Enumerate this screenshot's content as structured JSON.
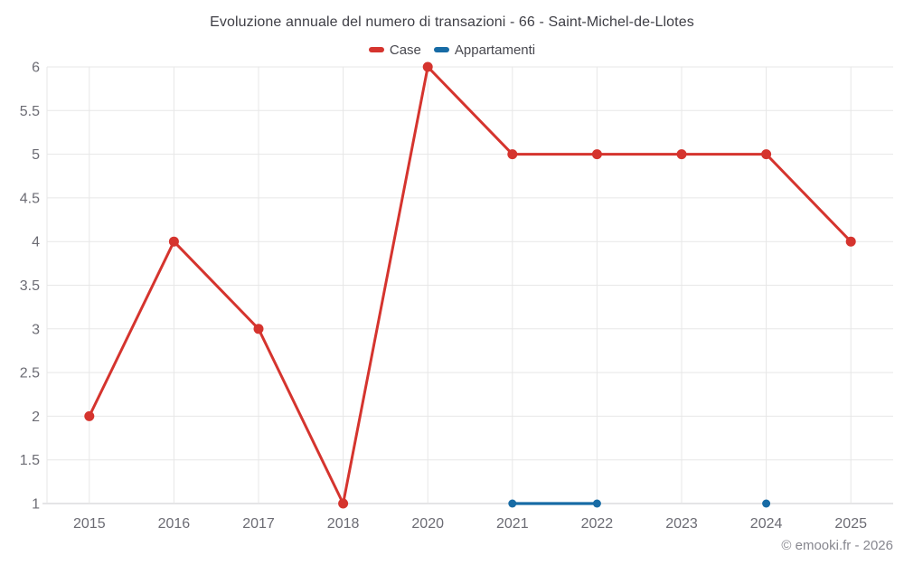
{
  "page": {
    "copyright": "© emooki.fr - 2026"
  },
  "chart_data": {
    "type": "line",
    "title": "Evoluzione annuale del numero di transazioni - 66 - Saint-Michel-de-Llotes",
    "categories": [
      "2015",
      "2016",
      "2017",
      "2018",
      "2020",
      "2021",
      "2022",
      "2023",
      "2024",
      "2025"
    ],
    "series": [
      {
        "name": "Case",
        "color": "#d5342e",
        "values": [
          2,
          4,
          3,
          1,
          6,
          5,
          5,
          5,
          5,
          4
        ]
      },
      {
        "name": "Appartamenti",
        "color": "#176ba5",
        "values": [
          null,
          null,
          null,
          null,
          null,
          1,
          1,
          null,
          1,
          null
        ]
      }
    ],
    "xlabel": "",
    "ylabel": "",
    "ylim": [
      1,
      6
    ],
    "ytick_step": 0.5,
    "ytick_labels": [
      "6",
      "5.5",
      "5",
      "4.5",
      "4",
      "3.5",
      "3",
      "2.5",
      "2",
      "1.5",
      "1"
    ],
    "grid": true,
    "legend_position": "top",
    "colors": {
      "grid_line": "#e7e7e7",
      "axis_line": "#c8c8cc",
      "axis_label": "#6c6c74",
      "title_text": "#3f3f46"
    }
  }
}
